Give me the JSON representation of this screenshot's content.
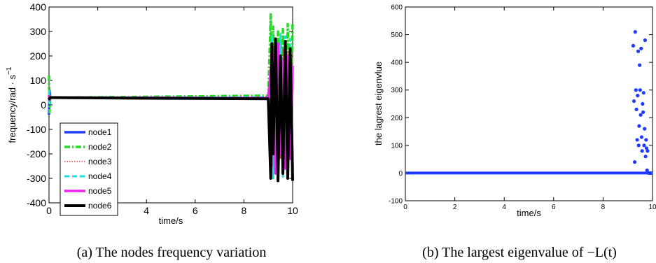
{
  "chart_data": [
    {
      "type": "line",
      "caption": "(a)  The nodes frequency variation",
      "xlabel": "time/s",
      "ylabel": "frequency/rad · s",
      "ylabel_superscript": "−1",
      "xlim": [
        0,
        10
      ],
      "ylim": [
        -400,
        400
      ],
      "xticks": [
        0,
        2,
        4,
        6,
        8,
        10
      ],
      "yticks": [
        -400,
        -300,
        -200,
        -100,
        0,
        100,
        200,
        300,
        400
      ],
      "legend_position": "lower-left",
      "series": [
        {
          "name": "node1",
          "color": "#1f3bff",
          "style": "solid",
          "x": [
            0,
            0.02,
            0.05,
            0.1,
            1,
            3,
            5,
            7,
            9,
            9.1,
            9.15,
            9.2,
            9.3,
            9.4,
            9.5,
            9.6,
            9.7,
            9.8,
            9.9,
            10
          ],
          "y": [
            -40,
            60,
            30,
            30,
            30,
            29,
            28,
            27,
            26,
            -200,
            250,
            -280,
            200,
            -250,
            260,
            -200,
            230,
            -280,
            240,
            -260
          ]
        },
        {
          "name": "node2",
          "color": "#22dd22",
          "style": "dashdot",
          "x": [
            0,
            0.02,
            0.05,
            0.1,
            1,
            3,
            5,
            7,
            9,
            9.1,
            9.15,
            9.2,
            9.3,
            9.4,
            9.5,
            9.6,
            9.7,
            9.8,
            9.9,
            10
          ],
          "y": [
            120,
            -30,
            35,
            30,
            31,
            32,
            34,
            36,
            38,
            370,
            -200,
            320,
            -150,
            300,
            -220,
            310,
            -180,
            330,
            -200,
            340
          ]
        },
        {
          "name": "node3",
          "color": "#d23c3c",
          "style": "dotted",
          "x": [
            0,
            0.02,
            0.05,
            0.1,
            1,
            3,
            5,
            7,
            9,
            9.1,
            9.15,
            9.2,
            9.3,
            9.4,
            9.5,
            9.6,
            9.7,
            9.8,
            9.9,
            10
          ],
          "y": [
            80,
            10,
            32,
            30,
            30,
            31,
            32,
            33,
            34,
            220,
            -180,
            240,
            -200,
            210,
            -220,
            230,
            -170,
            220,
            -190,
            210
          ]
        },
        {
          "name": "node4",
          "color": "#22dddd",
          "style": "dashed",
          "x": [
            0,
            0.02,
            0.05,
            0.1,
            1,
            3,
            5,
            7,
            9,
            9.1,
            9.15,
            9.2,
            9.3,
            9.4,
            9.5,
            9.6,
            9.7,
            9.8,
            9.9,
            10
          ],
          "y": [
            60,
            0,
            31,
            30,
            30,
            30,
            31,
            31,
            32,
            -250,
            280,
            -300,
            260,
            -240,
            290,
            -300,
            280,
            -260,
            270,
            -290
          ]
        },
        {
          "name": "node5",
          "color": "#ee22ee",
          "style": "solid",
          "x": [
            0,
            0.02,
            0.05,
            0.1,
            1,
            3,
            5,
            7,
            9,
            9.1,
            9.15,
            9.2,
            9.3,
            9.4,
            9.5,
            9.6,
            9.7,
            9.8,
            9.9,
            10
          ],
          "y": [
            40,
            20,
            30,
            30,
            30,
            29,
            29,
            28,
            28,
            150,
            -250,
            200,
            -280,
            250,
            -200,
            180,
            -260,
            200,
            -220,
            160
          ]
        },
        {
          "name": "node6",
          "color": "#000000",
          "style": "solid",
          "x": [
            0,
            0.02,
            0.05,
            0.1,
            1,
            3,
            5,
            7,
            9,
            9.1,
            9.15,
            9.2,
            9.3,
            9.4,
            9.5,
            9.6,
            9.7,
            9.8,
            9.9,
            10
          ],
          "y": [
            30,
            25,
            30,
            30,
            29,
            28,
            27,
            26,
            25,
            -300,
            250,
            -200,
            270,
            -310,
            200,
            -280,
            260,
            -300,
            230,
            -310
          ]
        }
      ]
    },
    {
      "type": "scatter",
      "caption": "(b)  The largest eigenvalue of −L(t)",
      "xlabel": "time/s",
      "ylabel": "the lagrest eigenvlue",
      "xlim": [
        0,
        10
      ],
      "ylim": [
        -100,
        600
      ],
      "xticks": [
        0,
        2,
        4,
        6,
        8,
        10
      ],
      "yticks": [
        -100,
        0,
        100,
        200,
        300,
        400,
        500,
        600
      ],
      "color": "#1f3bff",
      "baseline": {
        "y": 0,
        "x_from": 0,
        "x_to": 10
      },
      "points": [
        [
          9.22,
          460
        ],
        [
          9.25,
          260
        ],
        [
          9.28,
          40
        ],
        [
          9.3,
          510
        ],
        [
          9.33,
          300
        ],
        [
          9.35,
          230
        ],
        [
          9.38,
          120
        ],
        [
          9.4,
          280
        ],
        [
          9.42,
          440
        ],
        [
          9.44,
          100
        ],
        [
          9.46,
          170
        ],
        [
          9.48,
          390
        ],
        [
          9.5,
          300
        ],
        [
          9.52,
          210
        ],
        [
          9.54,
          450
        ],
        [
          9.56,
          130
        ],
        [
          9.58,
          80
        ],
        [
          9.6,
          250
        ],
        [
          9.62,
          220
        ],
        [
          9.64,
          290
        ],
        [
          9.66,
          100
        ],
        [
          9.68,
          160
        ],
        [
          9.7,
          480
        ],
        [
          9.72,
          60
        ],
        [
          9.74,
          120
        ],
        [
          9.76,
          90
        ],
        [
          9.78,
          10
        ],
        [
          9.8,
          80
        ],
        [
          9.85,
          0
        ],
        [
          9.9,
          0
        ],
        [
          9.95,
          0
        ]
      ]
    }
  ]
}
